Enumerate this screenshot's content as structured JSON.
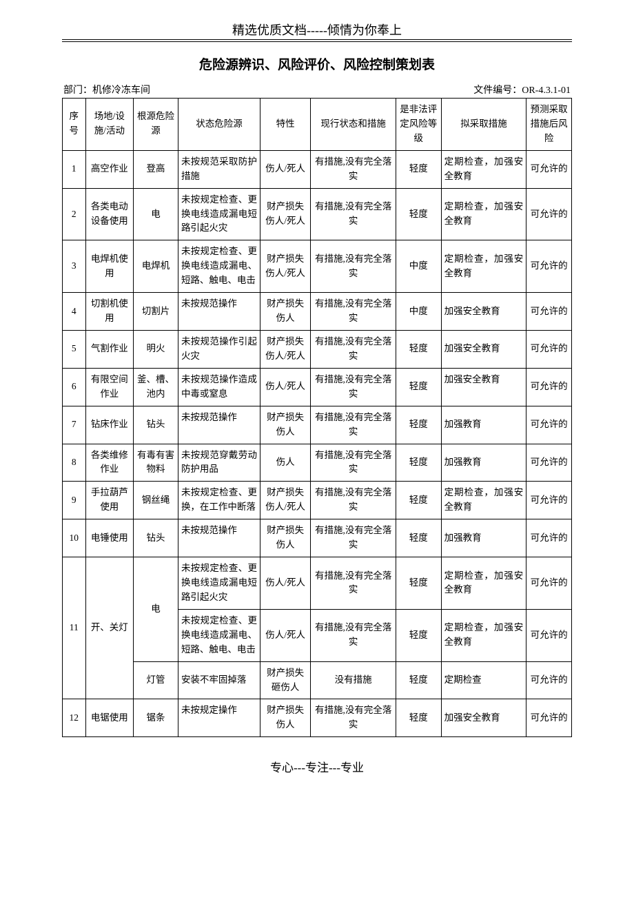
{
  "header": "精选优质文档-----倾情为你奉上",
  "title": "危险源辨识、风险评价、风险控制策划表",
  "dept_label": "部门：机修冷冻车间",
  "doc_no_label": "文件编号：OR-4.3.1-01",
  "footer": "专心---专注---专业",
  "columns": [
    "序号",
    "场地/设施/活动",
    "根源危险源",
    "状态危险源",
    "特性",
    "现行状态和措施",
    "是非法评定风险等级",
    "拟采取措施",
    "预测采取措施后风险"
  ],
  "rows": [
    {
      "no": "1",
      "site": "高空作业",
      "root": "登高",
      "state": "未按规范采取防护措施",
      "prop": "伤人/死人",
      "current": "有措施,没有完全落实",
      "level": "轻度",
      "plan": "定期检查，加强安全教育",
      "after": "可允许的"
    },
    {
      "no": "2",
      "site": "各类电动设备使用",
      "root": "电",
      "state": "未按规定检查、更换电线造成漏电短路引起火灾",
      "prop": "财产损失伤人/死人",
      "current": "有措施,没有完全落实",
      "level": "轻度",
      "plan": "定期检查，加强安全教育",
      "after": "可允许的"
    },
    {
      "no": "3",
      "site": "电焊机使用",
      "root": "电焊机",
      "state": "未按规定检查、更换电线造成漏电、短路、触电、电击",
      "prop": "财产损失伤人/死人",
      "current": "有措施,没有完全落实",
      "level": "中度",
      "plan": "定期检查，加强安全教育",
      "after": "可允许的"
    },
    {
      "no": "4",
      "site": "切割机使用",
      "root": "切割片",
      "state": "未按规范操作",
      "prop": "财产损失伤人",
      "current": "有措施,没有完全落实",
      "level": "中度",
      "plan": "加强安全教育",
      "after": "可允许的",
      "state_top": true,
      "plan_just": true
    },
    {
      "no": "5",
      "site": "气割作业",
      "root": "明火",
      "state": "未按规范操作引起火灾",
      "prop": "财产损失伤人/死人",
      "current": "有措施,没有完全落实",
      "level": "轻度",
      "plan": "加强安全教育",
      "after": "可允许的",
      "plan_just": true
    },
    {
      "no": "6",
      "site": "有限空间作业",
      "root": "釜、槽、池内",
      "state": "未按规范操作造成中毒或窒息",
      "prop": "伤人/死人",
      "current": "有措施,没有完全落实",
      "level": "轻度",
      "plan": "加强安全教育",
      "after": "可允许的",
      "plan_just": true,
      "plan_top": true
    },
    {
      "no": "7",
      "site": "钻床作业",
      "root": "钻头",
      "state": "未按规范操作",
      "prop": "财产损失伤人",
      "current": "有措施,没有完全落实",
      "level": "轻度",
      "plan": "加强教育",
      "after": "可允许的",
      "state_top": true
    },
    {
      "no": "8",
      "site": "各类维修作业",
      "root": "有毒有害物料",
      "state": "未按规范穿戴劳动防护用品",
      "prop": "伤人",
      "current": "有措施,没有完全落实",
      "level": "轻度",
      "plan": "加强教育",
      "after": "可允许的"
    },
    {
      "no": "9",
      "site": "手拉葫芦使用",
      "root": "钢丝绳",
      "state": "未按规定检查、更换，在工作中断落",
      "prop": "财产损失伤人/死人",
      "current": "有措施,没有完全落实",
      "level": "轻度",
      "plan": "定期检查，加强安全教育",
      "after": "可允许的"
    },
    {
      "no": "10",
      "site": "电锤使用",
      "root": "钻头",
      "state": "未按规范操作",
      "prop": "财产损失伤人",
      "current": "有措施,没有完全落实",
      "level": "轻度",
      "plan": "加强教育",
      "after": "可允许的",
      "state_top": true
    },
    {
      "no": "11",
      "site": "开、关灯",
      "root": "电",
      "root_rowspan": 2,
      "state": "未按规定检查、更换电线造成漏电短路引起火灾",
      "prop": "伤人/死人",
      "current": "有措施,没有完全落实",
      "level": "轻度",
      "plan": "定期检查，加强安全教育",
      "after": "可允许的",
      "site_rowspan": 3,
      "no_rowspan": 3
    },
    {
      "skip_no": true,
      "skip_site": true,
      "skip_root": true,
      "state": "未按规定检查、更换电线造成漏电、短路、触电、电击",
      "prop": "伤人/死人",
      "current": "有措施,没有完全落实",
      "level": "轻度",
      "plan": "定期检查，加强安全教育",
      "after": "可允许的"
    },
    {
      "skip_no": true,
      "skip_site": true,
      "root": "灯管",
      "state": "安装不牢固掉落",
      "prop": "财产损失砸伤人",
      "current": "没有措施",
      "level": "轻度",
      "plan": "定期检查",
      "after": "可允许的",
      "state_just": true
    },
    {
      "no": "12",
      "site": "电锯使用",
      "root": "锯条",
      "state": "未按规定操作",
      "prop": "财产损失伤人",
      "current": "有措施,没有完全落实",
      "level": "轻度",
      "plan": "加强安全教育",
      "after": "可允许的",
      "state_top": true,
      "plan_just": true
    }
  ]
}
